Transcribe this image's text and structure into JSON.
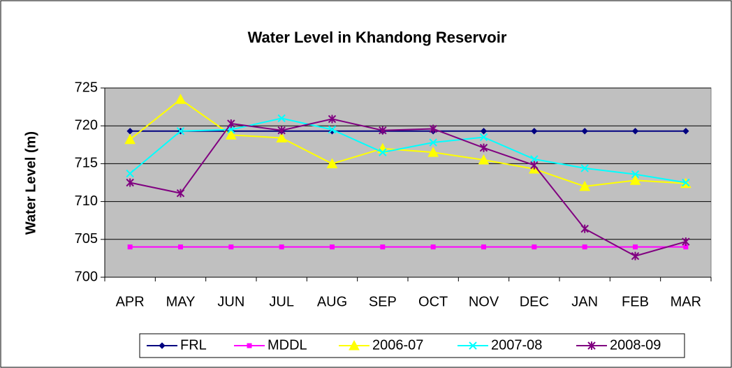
{
  "chart_data": {
    "type": "line",
    "title": "Water Level in Khandong Reservoir",
    "y_label": "Water Level (m)",
    "categories": [
      "APR",
      "MAY",
      "JUN",
      "JUL",
      "AUG",
      "SEP",
      "OCT",
      "NOV",
      "DEC",
      "JAN",
      "FEB",
      "MAR"
    ],
    "series": [
      {
        "name": "FRL",
        "color": "#000080",
        "marker": "diamond",
        "values": [
          719.3,
          719.3,
          719.3,
          719.3,
          719.3,
          719.3,
          719.3,
          719.3,
          719.3,
          719.3,
          719.3,
          719.3
        ]
      },
      {
        "name": "MDDL",
        "color": "#ff00ff",
        "marker": "square",
        "values": [
          704,
          704,
          704,
          704,
          704,
          704,
          704,
          704,
          704,
          704,
          704,
          704
        ]
      },
      {
        "name": "2006-07",
        "color": "#ffff00",
        "marker": "triangle",
        "values": [
          718.2,
          723.5,
          718.8,
          718.4,
          715,
          717,
          716.5,
          715.5,
          714.3,
          712,
          712.8,
          712.4
        ]
      },
      {
        "name": "2007-08",
        "color": "#00ffff",
        "marker": "x",
        "values": [
          713.7,
          719.3,
          719.5,
          721,
          719.5,
          716.5,
          717.8,
          718.5,
          715.6,
          714.4,
          713.6,
          712.5
        ]
      },
      {
        "name": "2008-09",
        "color": "#800080",
        "marker": "star",
        "values": [
          712.5,
          711.1,
          720.3,
          719.4,
          720.9,
          719.4,
          719.6,
          717.1,
          714.8,
          706.4,
          702.8,
          704.7
        ]
      }
    ],
    "ylim": [
      700,
      725
    ],
    "yticks": [
      700,
      705,
      710,
      715,
      720,
      725
    ],
    "grid": true,
    "legend": "bottom",
    "plot_background": "#c0c0c0"
  }
}
